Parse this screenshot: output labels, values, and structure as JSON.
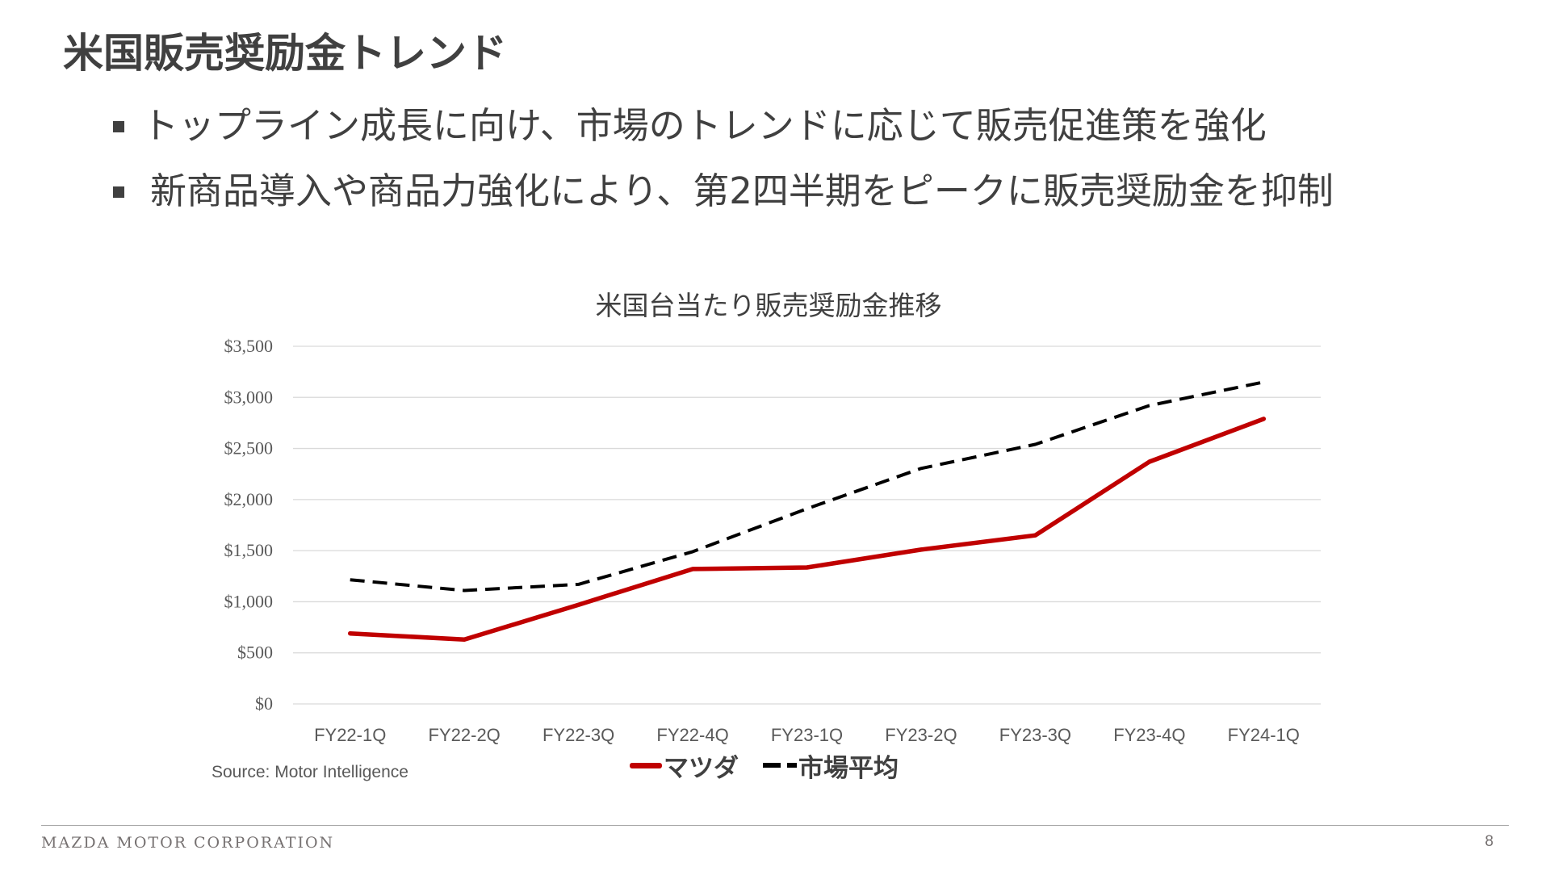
{
  "slide": {
    "title": "米国販売奨励金トレンド",
    "bullets": [
      "トップライン成長に向け、市場のトレンドに応じて販売促進策を強化",
      "新商品導入や商品力強化により、第2四半期をピークに販売奨励金を抑制"
    ],
    "source": "Source: Motor Intelligence",
    "footer_brand": "MAZDA MOTOR CORPORATION",
    "page_number": "8"
  },
  "colors": {
    "mazda": "#C00000",
    "market_average": "#000000",
    "gridline": "#D9D9D9",
    "text": "#404040"
  },
  "chart_data": {
    "type": "line",
    "title": "米国台当たり販売奨励金推移",
    "xlabel": "",
    "ylabel": "",
    "categories": [
      "FY22-1Q",
      "FY22-2Q",
      "FY22-3Q",
      "FY22-4Q",
      "FY23-1Q",
      "FY23-2Q",
      "FY23-3Q",
      "FY23-4Q",
      "FY24-1Q"
    ],
    "series": [
      {
        "name": "マツダ",
        "style": "solid",
        "color": "#C00000",
        "values": [
          690,
          630,
          970,
          1320,
          1335,
          1510,
          1650,
          2370,
          2790
        ]
      },
      {
        "name": "市場平均",
        "style": "dashed",
        "color": "#000000",
        "values": [
          1215,
          1110,
          1170,
          1490,
          1910,
          2305,
          2540,
          2920,
          3150
        ]
      }
    ],
    "ylim": [
      0,
      3500
    ],
    "yticks": [
      0,
      500,
      1000,
      1500,
      2000,
      2500,
      3000,
      3500
    ],
    "ytick_labels": [
      "$0",
      "$500",
      "$1,000",
      "$1,500",
      "$2,000",
      "$2,500",
      "$3,000",
      "$3,500"
    ],
    "grid": true,
    "legend_position": "bottom",
    "legend": [
      "マツダ",
      "市場平均"
    ]
  }
}
